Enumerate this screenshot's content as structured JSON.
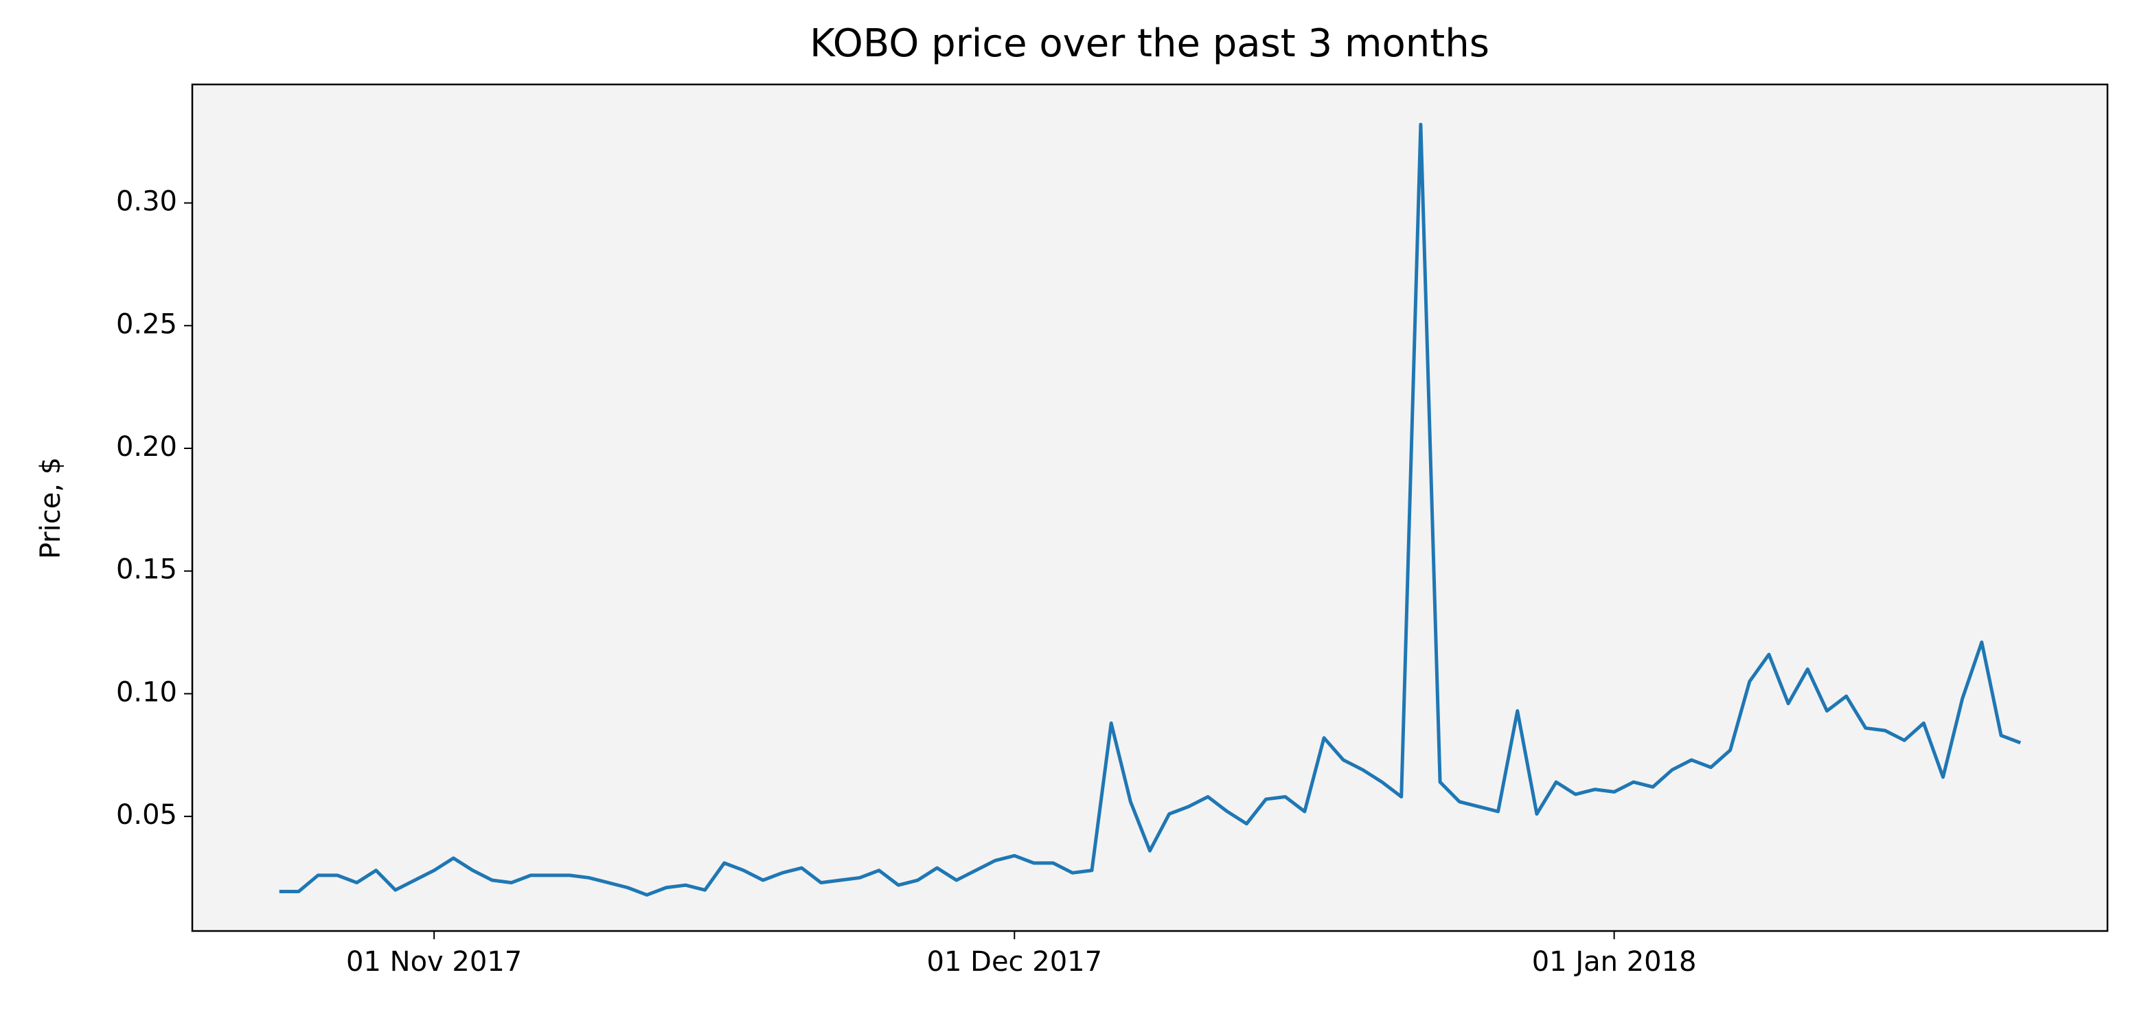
{
  "chart_data": {
    "type": "line",
    "title": "KOBO price over the past 3 months",
    "y_label": "Price, $",
    "x": [
      "2017-10-24",
      "2017-10-25",
      "2017-10-26",
      "2017-10-27",
      "2017-10-28",
      "2017-10-29",
      "2017-10-30",
      "2017-10-31",
      "2017-11-01",
      "2017-11-02",
      "2017-11-03",
      "2017-11-04",
      "2017-11-05",
      "2017-11-06",
      "2017-11-07",
      "2017-11-08",
      "2017-11-09",
      "2017-11-10",
      "2017-11-11",
      "2017-11-12",
      "2017-11-13",
      "2017-11-14",
      "2017-11-15",
      "2017-11-16",
      "2017-11-17",
      "2017-11-18",
      "2017-11-19",
      "2017-11-20",
      "2017-11-21",
      "2017-11-22",
      "2017-11-23",
      "2017-11-24",
      "2017-11-25",
      "2017-11-26",
      "2017-11-27",
      "2017-11-28",
      "2017-11-29",
      "2017-11-30",
      "2017-12-01",
      "2017-12-02",
      "2017-12-03",
      "2017-12-04",
      "2017-12-05",
      "2017-12-06",
      "2017-12-07",
      "2017-12-08",
      "2017-12-09",
      "2017-12-10",
      "2017-12-11",
      "2017-12-12",
      "2017-12-13",
      "2017-12-14",
      "2017-12-15",
      "2017-12-16",
      "2017-12-17",
      "2017-12-18",
      "2017-12-19",
      "2017-12-20",
      "2017-12-21",
      "2017-12-22",
      "2017-12-23",
      "2017-12-24",
      "2017-12-25",
      "2017-12-26",
      "2017-12-27",
      "2017-12-28",
      "2017-12-29",
      "2017-12-30",
      "2017-12-31",
      "2018-01-01",
      "2018-01-02",
      "2018-01-03",
      "2018-01-04",
      "2018-01-05",
      "2018-01-06",
      "2018-01-07",
      "2018-01-08",
      "2018-01-09",
      "2018-01-10",
      "2018-01-11",
      "2018-01-12",
      "2018-01-13",
      "2018-01-14",
      "2018-01-15",
      "2018-01-16",
      "2018-01-17",
      "2018-01-18",
      "2018-01-19",
      "2018-01-20",
      "2018-01-21",
      "2018-01-22"
    ],
    "values": [
      0.0194,
      0.0194,
      0.026,
      0.026,
      0.023,
      0.028,
      0.02,
      0.024,
      0.028,
      0.033,
      0.028,
      0.024,
      0.023,
      0.026,
      0.026,
      0.026,
      0.025,
      0.023,
      0.021,
      0.018,
      0.021,
      0.022,
      0.02,
      0.031,
      0.028,
      0.024,
      0.027,
      0.029,
      0.023,
      0.024,
      0.025,
      0.028,
      0.022,
      0.024,
      0.029,
      0.024,
      0.028,
      0.032,
      0.034,
      0.031,
      0.031,
      0.027,
      0.028,
      0.088,
      0.056,
      0.036,
      0.051,
      0.054,
      0.058,
      0.052,
      0.047,
      0.057,
      0.058,
      0.052,
      0.082,
      0.073,
      0.069,
      0.064,
      0.058,
      0.332,
      0.064,
      0.056,
      0.054,
      0.052,
      0.093,
      0.051,
      0.064,
      0.059,
      0.061,
      0.06,
      0.064,
      0.062,
      0.069,
      0.073,
      0.07,
      0.077,
      0.105,
      0.116,
      0.096,
      0.11,
      0.093,
      0.099,
      0.086,
      0.085,
      0.081,
      0.088,
      0.066,
      0.098,
      0.121,
      0.083,
      0.08
    ],
    "color": "#1f77b4",
    "background": "#f3f3f3",
    "xlim": [
      "2017-10-19T12:00Z",
      "2018-01-26T12:00Z"
    ],
    "xticks": [
      {
        "value": "2017-11-01",
        "label": "01 Nov 2017"
      },
      {
        "value": "2017-12-01",
        "label": "01 Dec 2017"
      },
      {
        "value": "2018-01-01",
        "label": "01 Jan 2018"
      }
    ],
    "ylim": [
      0.0033,
      0.3483
    ],
    "yticks": [
      0.05,
      {
        "value": 0.1,
        "label": "0.10"
      },
      0.15,
      {
        "value": 0.2,
        "label": "0.20"
      },
      0.25,
      {
        "value": 0.3,
        "label": "0.30"
      }
    ]
  }
}
